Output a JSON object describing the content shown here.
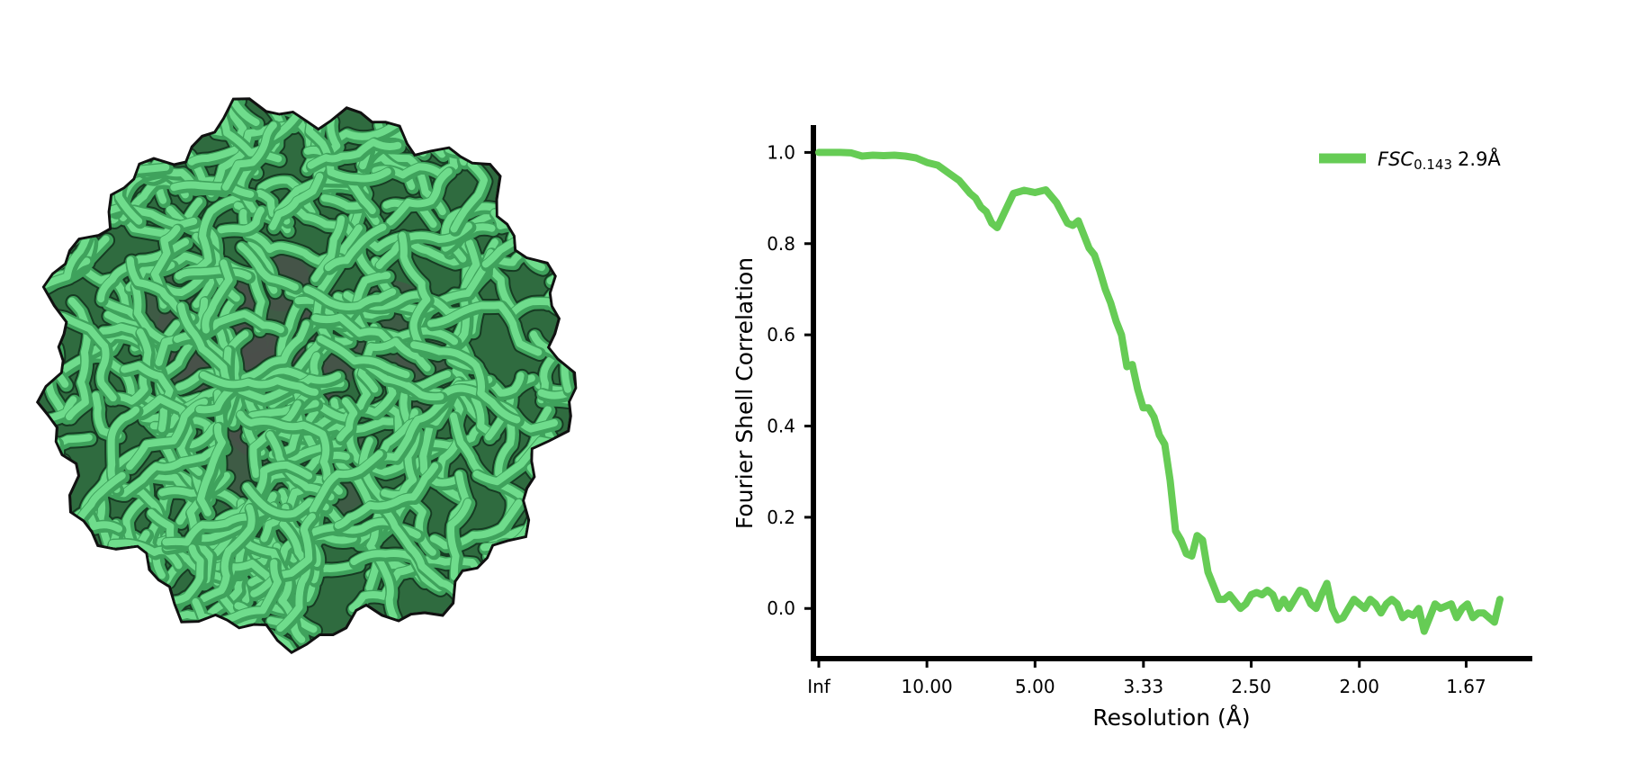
{
  "map": {
    "fill_color": "#6fdc8c",
    "outline_color": "#111111",
    "core_color": "#4a4f4a"
  },
  "chart_data": {
    "type": "line",
    "title": "",
    "xlabel": "Resolution (Å)",
    "ylabel": "Fourier Shell Correlation",
    "x_ticks": [
      "Inf",
      "10.00",
      "5.00",
      "3.33",
      "2.50",
      "2.00",
      "1.67"
    ],
    "y_ticks": [
      "0.0",
      "0.2",
      "0.4",
      "0.6",
      "0.8",
      "1.0"
    ],
    "xlim_inv_res": [
      -0.005,
      0.66
    ],
    "ylim": [
      -0.11,
      1.06
    ],
    "legend": {
      "label_italic": "FSC",
      "label_subscript": "0.143",
      "label_value": "2.9Å",
      "placement": "top-right"
    },
    "grid": false,
    "series": [
      {
        "color": "#66cc55",
        "x_inv_res": [
          0,
          0.01,
          0.02,
          0.03,
          0.04,
          0.05,
          0.06,
          0.07,
          0.08,
          0.09,
          0.1,
          0.11,
          0.12,
          0.13,
          0.14,
          0.145,
          0.15,
          0.155,
          0.16,
          0.165,
          0.17,
          0.175,
          0.18,
          0.19,
          0.2,
          0.21,
          0.22,
          0.23,
          0.235,
          0.24,
          0.245,
          0.25,
          0.255,
          0.26,
          0.265,
          0.27,
          0.275,
          0.28,
          0.285,
          0.29,
          0.295,
          0.3,
          0.305,
          0.31,
          0.315,
          0.32,
          0.325,
          0.33,
          0.335,
          0.34,
          0.345,
          0.35,
          0.355,
          0.36,
          0.365,
          0.37,
          0.375,
          0.38,
          0.385,
          0.39,
          0.395,
          0.4,
          0.405,
          0.41,
          0.415,
          0.42,
          0.425,
          0.43,
          0.435,
          0.44,
          0.445,
          0.45,
          0.455,
          0.46,
          0.465,
          0.47,
          0.475,
          0.48,
          0.485,
          0.49,
          0.495,
          0.5,
          0.505,
          0.51,
          0.515,
          0.52,
          0.525,
          0.53,
          0.535,
          0.54,
          0.545,
          0.55,
          0.555,
          0.56,
          0.565,
          0.57,
          0.575,
          0.58,
          0.585,
          0.59,
          0.595,
          0.6,
          0.605,
          0.61,
          0.615,
          0.62,
          0.625,
          0.63
        ],
        "y": [
          1.0,
          1.0,
          1.0,
          0.999,
          0.992,
          0.994,
          0.993,
          0.994,
          0.992,
          0.988,
          0.978,
          0.972,
          0.955,
          0.938,
          0.91,
          0.9,
          0.88,
          0.87,
          0.845,
          0.835,
          0.86,
          0.885,
          0.91,
          0.917,
          0.912,
          0.918,
          0.89,
          0.845,
          0.84,
          0.85,
          0.82,
          0.79,
          0.775,
          0.74,
          0.7,
          0.67,
          0.63,
          0.6,
          0.53,
          0.535,
          0.48,
          0.44,
          0.44,
          0.42,
          0.38,
          0.36,
          0.28,
          0.17,
          0.15,
          0.12,
          0.115,
          0.16,
          0.15,
          0.08,
          0.05,
          0.02,
          0.02,
          0.03,
          0.015,
          0.0,
          0.01,
          0.03,
          0.035,
          0.03,
          0.04,
          0.03,
          0.0,
          0.02,
          0.0,
          0.02,
          0.04,
          0.035,
          0.01,
          0.0,
          0.03,
          0.055,
          0.0,
          -0.025,
          -0.02,
          0.0,
          0.02,
          0.01,
          0.0,
          0.02,
          0.01,
          -0.01,
          0.01,
          0.02,
          0.01,
          -0.02,
          -0.01,
          -0.015,
          0.0,
          -0.05,
          -0.02,
          0.01,
          0.0,
          0.005,
          0.01,
          -0.02,
          0.0,
          0.01,
          -0.02,
          -0.01,
          -0.01,
          -0.02,
          -0.03,
          0.02
        ]
      }
    ]
  }
}
